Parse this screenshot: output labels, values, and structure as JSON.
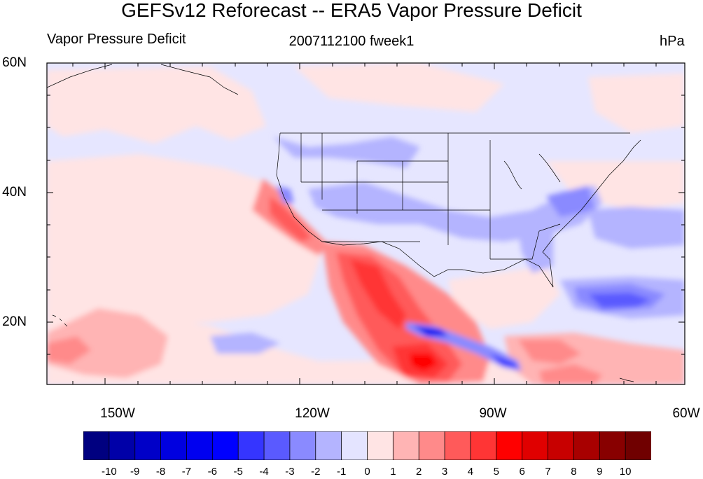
{
  "title": "GEFSv12 Reforecast -- ERA5 Vapor Pressure Deficit",
  "left_subtitle": "Vapor Pressure Deficit",
  "center_subtitle": "2007112100 fweek1",
  "units": "hPa",
  "axes": {
    "lat_labels": [
      "60N",
      "40N",
      "20N"
    ],
    "lon_labels": [
      "150W",
      "120W",
      "90W",
      "60W"
    ],
    "lat_range": [
      10,
      60
    ],
    "lon_range": [
      -159,
      -61
    ]
  },
  "colorbar": {
    "levels": [
      "-10",
      "-9",
      "-8",
      "-7",
      "-6",
      "-5",
      "-4",
      "-3",
      "-2",
      "-1",
      "0",
      "1",
      "2",
      "3",
      "4",
      "5",
      "6",
      "7",
      "8",
      "9",
      "10"
    ],
    "colors": [
      "#000080",
      "#0000a8",
      "#0000c8",
      "#0000e0",
      "#0000f0",
      "#0000ff",
      "#3535ff",
      "#5a5aff",
      "#8a8aff",
      "#b4b4ff",
      "#e4e4ff",
      "#ffe4e4",
      "#ffb4b4",
      "#ff8a8a",
      "#ff5a5a",
      "#ff3535",
      "#ff0000",
      "#e00000",
      "#c80000",
      "#a80000",
      "#880000",
      "#700000"
    ]
  }
}
